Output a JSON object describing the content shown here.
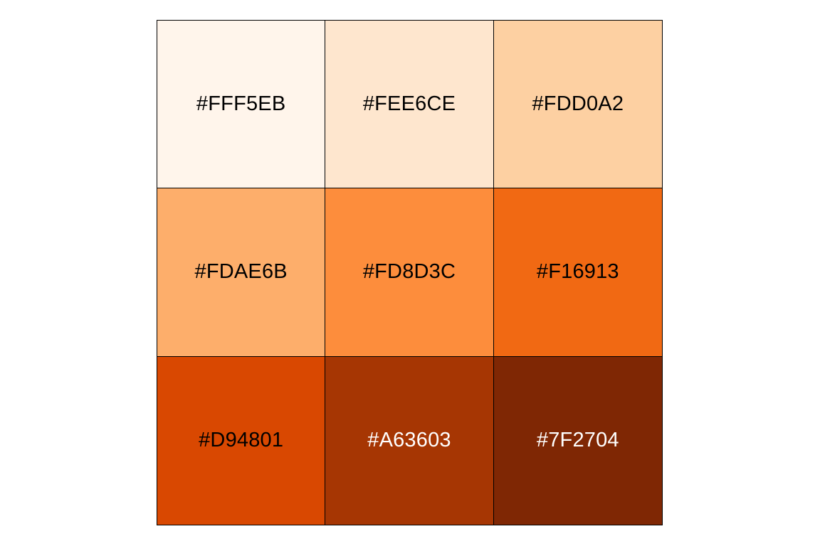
{
  "swatches": [
    {
      "label": "#FFF5EB",
      "fill": "#FFF5EB",
      "text_color": "#000000"
    },
    {
      "label": "#FEE6CE",
      "fill": "#FEE6CE",
      "text_color": "#000000"
    },
    {
      "label": "#FDD0A2",
      "fill": "#FDD0A2",
      "text_color": "#000000"
    },
    {
      "label": "#FDAE6B",
      "fill": "#FDAE6B",
      "text_color": "#000000"
    },
    {
      "label": "#FD8D3C",
      "fill": "#FD8D3C",
      "text_color": "#000000"
    },
    {
      "label": "#F16913",
      "fill": "#F16913",
      "text_color": "#000000"
    },
    {
      "label": "#D94801",
      "fill": "#D94801",
      "text_color": "#000000"
    },
    {
      "label": "#A63603",
      "fill": "#A63603",
      "text_color": "#FFFFFF"
    },
    {
      "label": "#7F2704",
      "fill": "#7F2704",
      "text_color": "#FFFFFF"
    }
  ]
}
